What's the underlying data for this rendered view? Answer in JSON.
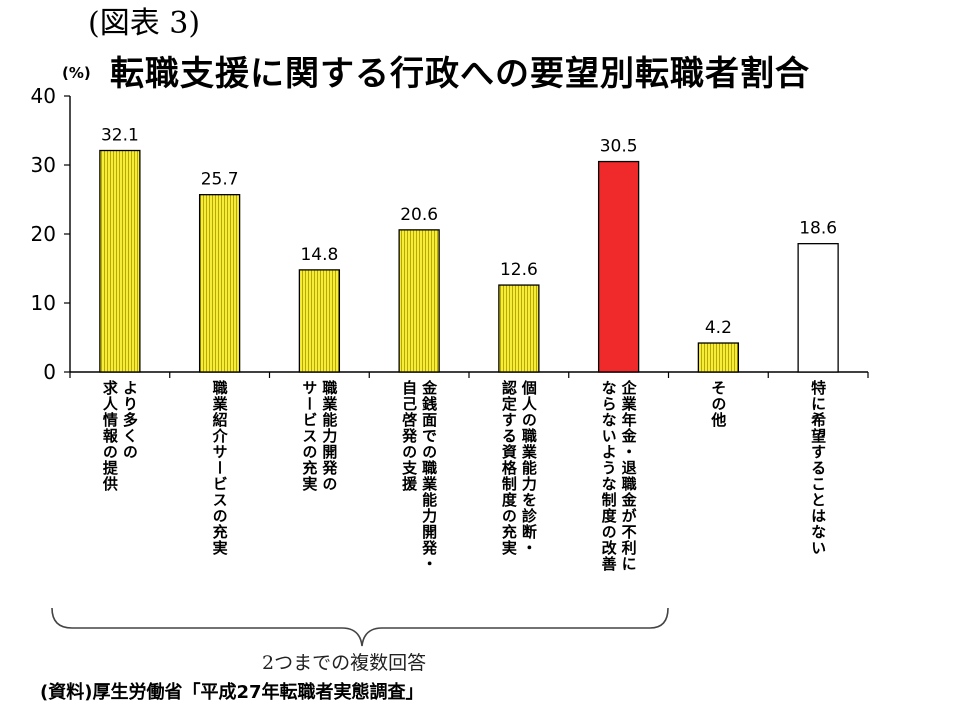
{
  "figure_label": "(図表 3)",
  "title": "転職支援に関する行政への要望別転職者割合",
  "unit": "(%)",
  "group_label": "2つまでの複数回答",
  "source": "(資料)厚生労働省「平成27年転職者実態調査」",
  "colors": {
    "yellow": "#f6ec3a",
    "yellow_stripe": "#b9a800",
    "red": "#f02a2a",
    "white": "#ffffff"
  },
  "chart_data": {
    "type": "bar",
    "title": "転職支援に関する行政への要望別転職者割合",
    "xlabel": "",
    "ylabel": "(%)",
    "ylim": [
      0,
      40
    ],
    "yticks": [
      0,
      10,
      20,
      30,
      40
    ],
    "grid": false,
    "categories": [
      [
        "より多くの",
        "求人情報の提供"
      ],
      [
        "職業紹介サービスの充実"
      ],
      [
        "職業能力開発の",
        "サービスの充実"
      ],
      [
        "金銭面での職業能力開発・",
        "自己啓発の支援"
      ],
      [
        "個人の職業能力を診断・",
        "認定する資格制度の充実"
      ],
      [
        "企業年金・退職金が不利に",
        "ならないような制度の改善"
      ],
      [
        "その他"
      ],
      [
        "特に希望することはない"
      ]
    ],
    "values": [
      32.1,
      25.7,
      14.8,
      20.6,
      12.6,
      30.5,
      4.2,
      18.6
    ],
    "value_labels": [
      "32.1",
      "25.7",
      "14.8",
      "20.6",
      "12.6",
      "30.5",
      "4.2",
      "18.6"
    ],
    "bar_fills": [
      "yellow",
      "yellow",
      "yellow",
      "yellow",
      "yellow",
      "red",
      "yellow",
      "white"
    ]
  }
}
